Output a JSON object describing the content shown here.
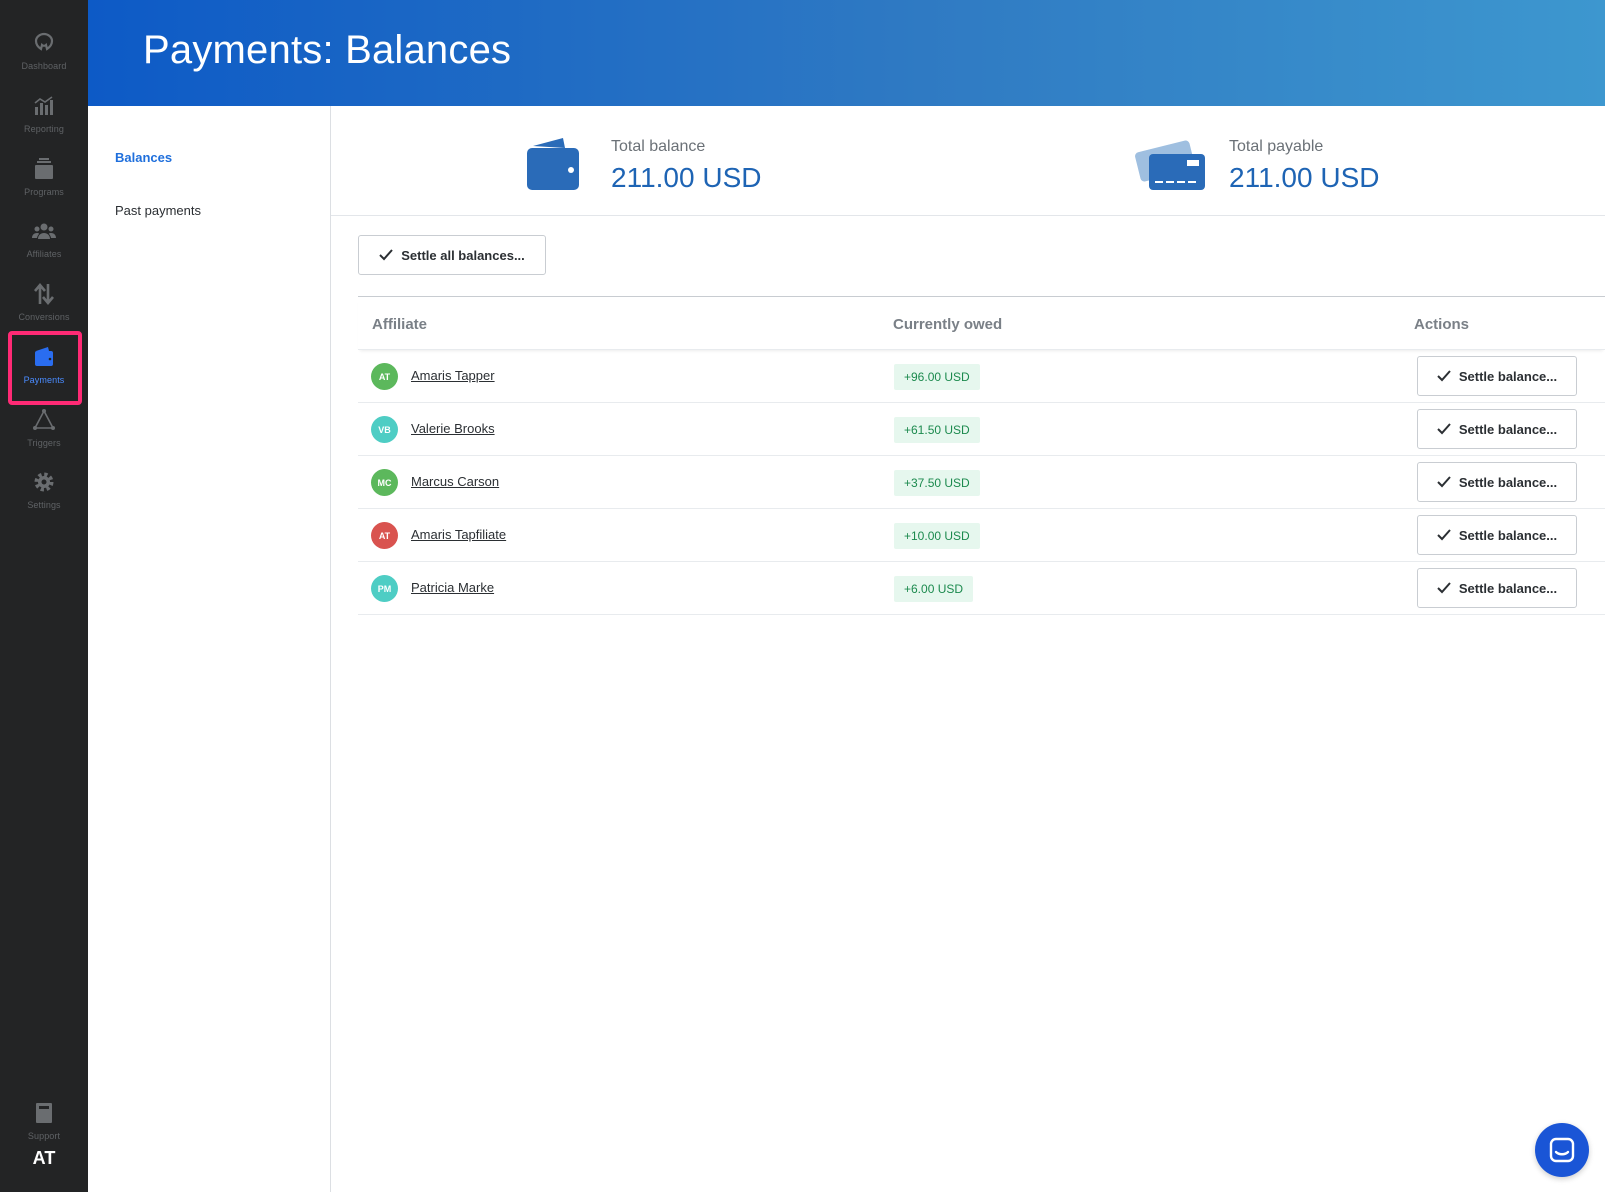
{
  "rail": {
    "items": [
      {
        "label": "Dashboard",
        "icon": "dashboard-icon"
      },
      {
        "label": "Reporting",
        "icon": "bar-chart-icon"
      },
      {
        "label": "Programs",
        "icon": "programs-icon"
      },
      {
        "label": "Affiliates",
        "icon": "people-icon"
      },
      {
        "label": "Conversions",
        "icon": "up-down-arrows-icon"
      },
      {
        "label": "Payments",
        "icon": "wallet-icon"
      },
      {
        "label": "Triggers",
        "icon": "triggers-icon"
      },
      {
        "label": "Settings",
        "icon": "gear-icon"
      }
    ],
    "support_label": "Support",
    "user_initials": "AT"
  },
  "header": {
    "title": "Payments: Balances"
  },
  "subnav": {
    "balances": "Balances",
    "past_payments": "Past payments"
  },
  "summary": {
    "total_balance_label": "Total balance",
    "total_balance_value": "211.00 USD",
    "total_payable_label": "Total payable",
    "total_payable_value": "211.00 USD"
  },
  "actions": {
    "settle_all": "Settle all balances..."
  },
  "table": {
    "headers": {
      "affiliate": "Affiliate",
      "owed": "Currently owed",
      "actions": "Actions"
    },
    "row_action": "Settle balance...",
    "rows": [
      {
        "initials": "AT",
        "name": "Amaris Tapper",
        "owed": "+96.00 USD",
        "color": "#5cb85c"
      },
      {
        "initials": "VB",
        "name": "Valerie Brooks",
        "owed": "+61.50 USD",
        "color": "#4ecdc4"
      },
      {
        "initials": "MC",
        "name": "Marcus Carson",
        "owed": "+37.50 USD",
        "color": "#5cb85c"
      },
      {
        "initials": "AT",
        "name": "Amaris Tapfiliate",
        "owed": "+10.00 USD",
        "color": "#d9534f"
      },
      {
        "initials": "PM",
        "name": "Patricia Marke",
        "owed": "+6.00 USD",
        "color": "#4ecdc4"
      }
    ]
  },
  "colors": {
    "accent": "#1f6fdc",
    "highlight": "#ff2a75"
  }
}
